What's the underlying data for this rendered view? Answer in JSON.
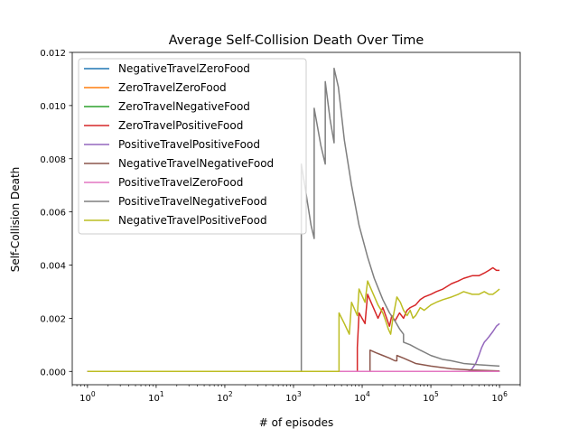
{
  "chart_data": {
    "type": "line",
    "title": "Average Self-Collision Death Over Time",
    "xlabel": "# of episodes",
    "ylabel": "Self-Collision Death",
    "xscale": "log",
    "xlim": [
      0.6,
      2000000
    ],
    "ylim": [
      -0.0005,
      0.012
    ],
    "grid": false,
    "legend_position": "top-left",
    "x_ticks": [
      {
        "value": 1,
        "base": "10",
        "exp": "0"
      },
      {
        "value": 10,
        "base": "10",
        "exp": "1"
      },
      {
        "value": 100,
        "base": "10",
        "exp": "2"
      },
      {
        "value": 1000,
        "base": "10",
        "exp": "3"
      },
      {
        "value": 10000,
        "base": "10",
        "exp": "4"
      },
      {
        "value": 100000,
        "base": "10",
        "exp": "5"
      },
      {
        "value": 1000000,
        "base": "10",
        "exp": "6"
      }
    ],
    "y_ticks": [
      {
        "value": 0.0,
        "label": "0.000"
      },
      {
        "value": 0.002,
        "label": "0.002"
      },
      {
        "value": 0.004,
        "label": "0.004"
      },
      {
        "value": 0.006,
        "label": "0.006"
      },
      {
        "value": 0.008,
        "label": "0.008"
      },
      {
        "value": 0.01,
        "label": "0.010"
      },
      {
        "value": 0.012,
        "label": "0.012"
      }
    ],
    "series": [
      {
        "name": "NegativeTravelZeroFood",
        "color": "#1f77b4",
        "points": [
          [
            1,
            0
          ],
          [
            1000000,
            0
          ]
        ]
      },
      {
        "name": "ZeroTravelZeroFood",
        "color": "#ff7f0e",
        "points": [
          [
            1,
            0
          ],
          [
            1000000,
            0
          ]
        ]
      },
      {
        "name": "ZeroTravelNegativeFood",
        "color": "#2ca02c",
        "points": [
          [
            1,
            0
          ],
          [
            1000000,
            0
          ]
        ]
      },
      {
        "name": "ZeroTravelPositiveFood",
        "color": "#d62728",
        "points": [
          [
            1,
            0
          ],
          [
            8500,
            0
          ],
          [
            8500,
            0.0009
          ],
          [
            9000,
            0.0022
          ],
          [
            11000,
            0.0018
          ],
          [
            12000,
            0.0029
          ],
          [
            14000,
            0.0025
          ],
          [
            17000,
            0.002
          ],
          [
            20000,
            0.0024
          ],
          [
            25000,
            0.0017
          ],
          [
            27000,
            0.0021
          ],
          [
            30000,
            0.0019
          ],
          [
            35000,
            0.0022
          ],
          [
            40000,
            0.002
          ],
          [
            45000,
            0.0023
          ],
          [
            50000,
            0.0024
          ],
          [
            60000,
            0.0025
          ],
          [
            70000,
            0.0027
          ],
          [
            80000,
            0.0028
          ],
          [
            100000,
            0.0029
          ],
          [
            120000,
            0.003
          ],
          [
            150000,
            0.0031
          ],
          [
            200000,
            0.0033
          ],
          [
            250000,
            0.0034
          ],
          [
            300000,
            0.0035
          ],
          [
            400000,
            0.0036
          ],
          [
            500000,
            0.0036
          ],
          [
            600000,
            0.0037
          ],
          [
            700000,
            0.0038
          ],
          [
            800000,
            0.0039
          ],
          [
            900000,
            0.0038
          ],
          [
            1000000,
            0.0038
          ]
        ]
      },
      {
        "name": "PositiveTravelPositiveFood",
        "color": "#9467bd",
        "points": [
          [
            1,
            0
          ],
          [
            350000,
            0
          ],
          [
            400000,
            0.0001
          ],
          [
            450000,
            0.0003
          ],
          [
            500000,
            0.0006
          ],
          [
            550000,
            0.0009
          ],
          [
            600000,
            0.0011
          ],
          [
            650000,
            0.0012
          ],
          [
            700000,
            0.0013
          ],
          [
            800000,
            0.0015
          ],
          [
            900000,
            0.0017
          ],
          [
            1000000,
            0.0018
          ]
        ]
      },
      {
        "name": "NegativeTravelNegativeFood",
        "color": "#8c564b",
        "points": [
          [
            1,
            0
          ],
          [
            13000,
            0
          ],
          [
            13000,
            0.0008
          ],
          [
            16000,
            0.0007
          ],
          [
            20000,
            0.0006
          ],
          [
            25000,
            0.0005
          ],
          [
            30000,
            0.0004
          ],
          [
            32000,
            0.0004
          ],
          [
            32000,
            0.0006
          ],
          [
            40000,
            0.0005
          ],
          [
            60000,
            0.0003
          ],
          [
            100000,
            0.0002
          ],
          [
            200000,
            0.0001
          ],
          [
            400000,
            5e-05
          ],
          [
            1000000,
            2e-05
          ]
        ]
      },
      {
        "name": "PositiveTravelZeroFood",
        "color": "#e377c2",
        "points": [
          [
            1,
            0
          ],
          [
            1000000,
            0
          ]
        ]
      },
      {
        "name": "PositiveTravelNegativeFood",
        "color": "#7f7f7f",
        "points": [
          [
            1,
            0
          ],
          [
            1300,
            0
          ],
          [
            1300,
            0.0078
          ],
          [
            1500,
            0.0068
          ],
          [
            1800,
            0.0055
          ],
          [
            2000,
            0.005
          ],
          [
            2000,
            0.0099
          ],
          [
            2500,
            0.0085
          ],
          [
            2900,
            0.0078
          ],
          [
            2900,
            0.0109
          ],
          [
            3400,
            0.0095
          ],
          [
            3900,
            0.0086
          ],
          [
            3900,
            0.0114
          ],
          [
            4500,
            0.0107
          ],
          [
            5500,
            0.0087
          ],
          [
            7000,
            0.007
          ],
          [
            9000,
            0.0055
          ],
          [
            12000,
            0.0043
          ],
          [
            15000,
            0.0035
          ],
          [
            20000,
            0.0027
          ],
          [
            25000,
            0.0022
          ],
          [
            30000,
            0.0019
          ],
          [
            35000,
            0.0016
          ],
          [
            40000,
            0.0014
          ],
          [
            40000,
            0.0011
          ],
          [
            50000,
            0.001
          ],
          [
            70000,
            0.0008
          ],
          [
            100000,
            0.0006
          ],
          [
            150000,
            0.00045
          ],
          [
            200000,
            0.0004
          ],
          [
            300000,
            0.0003
          ],
          [
            500000,
            0.00025
          ],
          [
            1000000,
            0.0002
          ]
        ]
      },
      {
        "name": "NegativeTravelPositiveFood",
        "color": "#bcbd22",
        "points": [
          [
            1,
            0
          ],
          [
            4600,
            0
          ],
          [
            4600,
            0.0022
          ],
          [
            5500,
            0.0018
          ],
          [
            6500,
            0.0014
          ],
          [
            7000,
            0.0026
          ],
          [
            8500,
            0.0021
          ],
          [
            9000,
            0.0031
          ],
          [
            11000,
            0.0026
          ],
          [
            12000,
            0.0034
          ],
          [
            14000,
            0.003
          ],
          [
            17000,
            0.0025
          ],
          [
            20000,
            0.0022
          ],
          [
            22000,
            0.0019
          ],
          [
            24000,
            0.0016
          ],
          [
            26000,
            0.0014
          ],
          [
            28000,
            0.002
          ],
          [
            32000,
            0.0028
          ],
          [
            36000,
            0.0026
          ],
          [
            40000,
            0.0023
          ],
          [
            45000,
            0.0021
          ],
          [
            50000,
            0.0023
          ],
          [
            55000,
            0.002
          ],
          [
            60000,
            0.0021
          ],
          [
            70000,
            0.0024
          ],
          [
            80000,
            0.0023
          ],
          [
            100000,
            0.0025
          ],
          [
            120000,
            0.0026
          ],
          [
            150000,
            0.0027
          ],
          [
            200000,
            0.0028
          ],
          [
            250000,
            0.0029
          ],
          [
            300000,
            0.003
          ],
          [
            400000,
            0.0029
          ],
          [
            500000,
            0.0029
          ],
          [
            600000,
            0.003
          ],
          [
            700000,
            0.0029
          ],
          [
            800000,
            0.0029
          ],
          [
            900000,
            0.003
          ],
          [
            1000000,
            0.0031
          ]
        ]
      }
    ]
  }
}
